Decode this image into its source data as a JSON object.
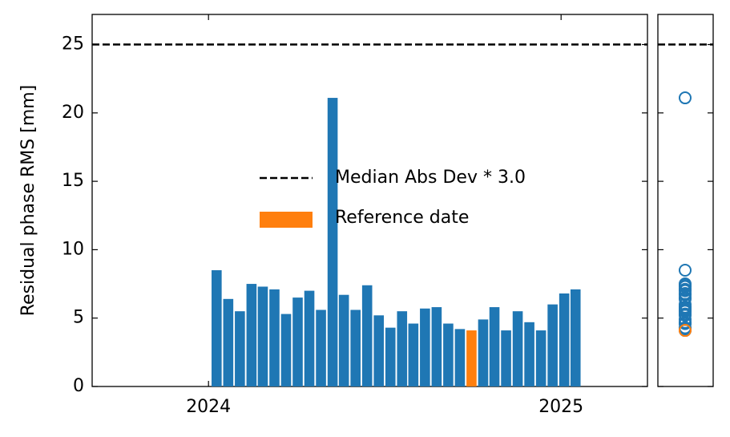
{
  "chart_data": {
    "type": "bar",
    "y_label": "Residual phase RMS [mm]",
    "x": [
      2024.023,
      2024.056,
      2024.089,
      2024.122,
      2024.154,
      2024.187,
      2024.22,
      2024.253,
      2024.286,
      2024.319,
      2024.352,
      2024.384,
      2024.417,
      2024.45,
      2024.483,
      2024.516,
      2024.549,
      2024.581,
      2024.614,
      2024.647,
      2024.68,
      2024.713,
      2024.746,
      2024.779,
      2024.811,
      2024.844,
      2024.877,
      2024.91,
      2024.943,
      2024.976,
      2025.009,
      2025.041
    ],
    "values": [
      8.5,
      6.4,
      5.5,
      7.5,
      7.3,
      7.1,
      5.3,
      6.5,
      7.0,
      5.6,
      21.1,
      6.7,
      5.6,
      7.4,
      5.2,
      4.3,
      5.5,
      4.6,
      5.7,
      5.8,
      4.6,
      4.2,
      4.1,
      4.9,
      5.8,
      4.1,
      5.5,
      4.7,
      4.1,
      6.0,
      6.8,
      7.1
    ],
    "colors": [
      "#1f77b4",
      "#1f77b4",
      "#1f77b4",
      "#1f77b4",
      "#1f77b4",
      "#1f77b4",
      "#1f77b4",
      "#1f77b4",
      "#1f77b4",
      "#1f77b4",
      "#1f77b4",
      "#1f77b4",
      "#1f77b4",
      "#1f77b4",
      "#1f77b4",
      "#1f77b4",
      "#1f77b4",
      "#1f77b4",
      "#1f77b4",
      "#1f77b4",
      "#1f77b4",
      "#1f77b4",
      "#ff7f0e",
      "#1f77b4",
      "#1f77b4",
      "#1f77b4",
      "#1f77b4",
      "#1f77b4",
      "#1f77b4",
      "#1f77b4",
      "#1f77b4",
      "#1f77b4"
    ],
    "threshold": {
      "name": "Median Abs Dev * 3.0",
      "value": 25,
      "color": "#000000"
    },
    "reference": {
      "name": "Reference date",
      "color": "#ff7f0e"
    },
    "xlim": [
      2023.67,
      2025.245
    ],
    "xticks": [
      2024,
      2025
    ],
    "ylim": [
      0,
      27.2
    ],
    "yticks": [
      0,
      5,
      10,
      15,
      20,
      25
    ]
  }
}
